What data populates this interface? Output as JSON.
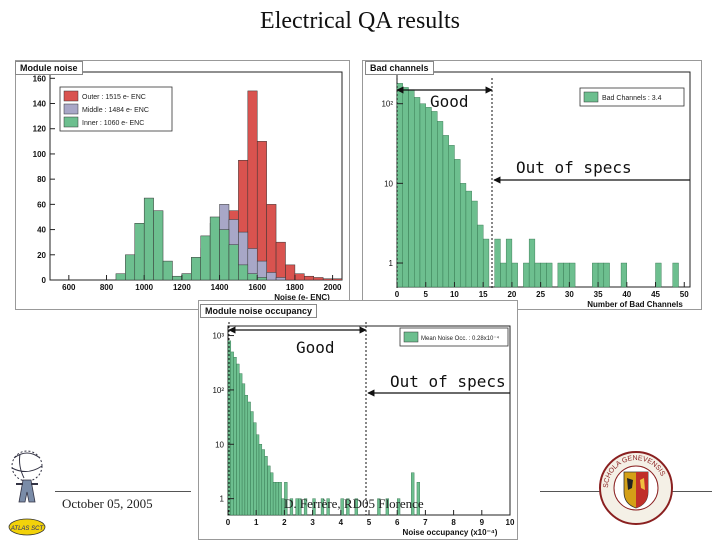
{
  "slide": {
    "title": "Electrical QA results",
    "footer_date": "October 05, 2005",
    "footer_author": "D. Ferrère, RD05 Florence"
  },
  "callouts": {
    "good_top": "Good",
    "out_of_specs_top": "Out of specs",
    "good_bottom": "Good",
    "out_of_specs_bottom": "Out of specs"
  },
  "logos": {
    "left": "ATLAS SCT",
    "right": "SCHOLA GENEVENSIS"
  },
  "colors": {
    "outer": "#d9534f",
    "middle": "#a8a7c7",
    "inner": "#6dbf8f",
    "legend_green": "#6dbf8f"
  },
  "chart_data": [
    {
      "type": "bar",
      "title": "Module noise",
      "xlabel": "Noise (e- ENC)",
      "ylabel": "",
      "xlim": [
        500,
        2050
      ],
      "ylim": [
        0,
        165
      ],
      "xticks": [
        "600",
        "800",
        "1000",
        "1200",
        "1400",
        "1600",
        "1800",
        "2000"
      ],
      "yticks": [
        "0",
        "20",
        "40",
        "60",
        "80",
        "100",
        "120",
        "140",
        "160"
      ],
      "bin_width": 50,
      "legend": [
        "Outer : 1515 e- ENC",
        "Middle : 1484 e- ENC",
        "Inner : 1060 e- ENC"
      ],
      "series": [
        {
          "name": "Outer",
          "x": [
            1300,
            1350,
            1400,
            1450,
            1500,
            1550,
            1600,
            1650,
            1700,
            1750,
            1800,
            1850,
            1900,
            1950,
            2000
          ],
          "values": [
            5,
            15,
            40,
            55,
            95,
            150,
            110,
            60,
            30,
            12,
            5,
            3,
            2,
            1,
            1
          ]
        },
        {
          "name": "Middle",
          "x": [
            1150,
            1200,
            1250,
            1300,
            1350,
            1400,
            1450,
            1500,
            1550,
            1600,
            1650,
            1700
          ],
          "values": [
            2,
            5,
            12,
            25,
            45,
            60,
            48,
            38,
            25,
            15,
            6,
            2
          ]
        },
        {
          "name": "Inner",
          "x": [
            850,
            900,
            950,
            1000,
            1050,
            1100,
            1150,
            1200,
            1250,
            1300,
            1350,
            1400,
            1450,
            1500,
            1550,
            1600
          ],
          "values": [
            5,
            20,
            45,
            65,
            55,
            15,
            3,
            5,
            18,
            35,
            50,
            40,
            28,
            12,
            5,
            2
          ]
        }
      ]
    },
    {
      "type": "bar",
      "title": "Bad channels",
      "xlabel": "Number of Bad Channels",
      "ylabel": "",
      "yscale": "log",
      "xlim": [
        0,
        51
      ],
      "ylim": [
        0.5,
        250
      ],
      "xticks": [
        "0",
        "5",
        "10",
        "15",
        "20",
        "25",
        "30",
        "35",
        "40",
        "45",
        "50"
      ],
      "yticks": [
        "1",
        "10",
        "10²"
      ],
      "legend": [
        "Bad Channels : 3.4"
      ],
      "x": [
        0,
        1,
        2,
        3,
        4,
        5,
        6,
        7,
        8,
        9,
        10,
        11,
        12,
        13,
        14,
        15,
        16,
        17,
        18,
        19,
        20,
        21,
        22,
        23,
        24,
        25,
        26,
        27,
        28,
        29,
        30,
        31,
        32,
        33,
        34,
        35,
        36,
        37,
        38,
        39,
        40,
        41,
        42,
        43,
        44,
        45,
        46,
        47,
        48,
        49
      ],
      "values": [
        180,
        160,
        150,
        120,
        100,
        90,
        80,
        60,
        40,
        30,
        20,
        10,
        8,
        6,
        3,
        2,
        0,
        2,
        1,
        2,
        1,
        0,
        1,
        2,
        1,
        1,
        1,
        0,
        1,
        1,
        1,
        0,
        0,
        0,
        1,
        1,
        1,
        0,
        0,
        1,
        0,
        0,
        0,
        0,
        0,
        1,
        0,
        0,
        1,
        0
      ]
    },
    {
      "type": "bar",
      "title": "Module noise occupancy",
      "xlabel": "Noise occupancy (x10⁻⁴)",
      "ylabel": "",
      "yscale": "log",
      "xlim": [
        0,
        10
      ],
      "ylim": [
        0.5,
        1500
      ],
      "xticks": [
        "0",
        "1",
        "2",
        "3",
        "4",
        "5",
        "6",
        "7",
        "8",
        "9",
        "10"
      ],
      "yticks": [
        "1",
        "10",
        "10²",
        "10³"
      ],
      "legend": [
        "Mean Noise Occ. : 0.28x10⁻⁴"
      ],
      "bin_width": 0.1,
      "x": [
        0.0,
        0.1,
        0.2,
        0.3,
        0.4,
        0.5,
        0.6,
        0.7,
        0.8,
        0.9,
        1.0,
        1.1,
        1.2,
        1.3,
        1.4,
        1.5,
        1.6,
        1.7,
        1.8,
        1.9,
        2.0,
        2.2,
        2.4,
        2.5,
        2.7,
        3.0,
        3.3,
        3.5,
        4.0,
        4.2,
        4.5,
        5.3,
        5.6,
        6.0,
        6.5,
        6.7
      ],
      "values": [
        800,
        500,
        400,
        300,
        200,
        130,
        80,
        60,
        40,
        25,
        15,
        10,
        8,
        6,
        4,
        3,
        2,
        2,
        2,
        1,
        2,
        1,
        1,
        1,
        1,
        1,
        1,
        1,
        1,
        1,
        1,
        1,
        1,
        1,
        3,
        2
      ]
    }
  ]
}
